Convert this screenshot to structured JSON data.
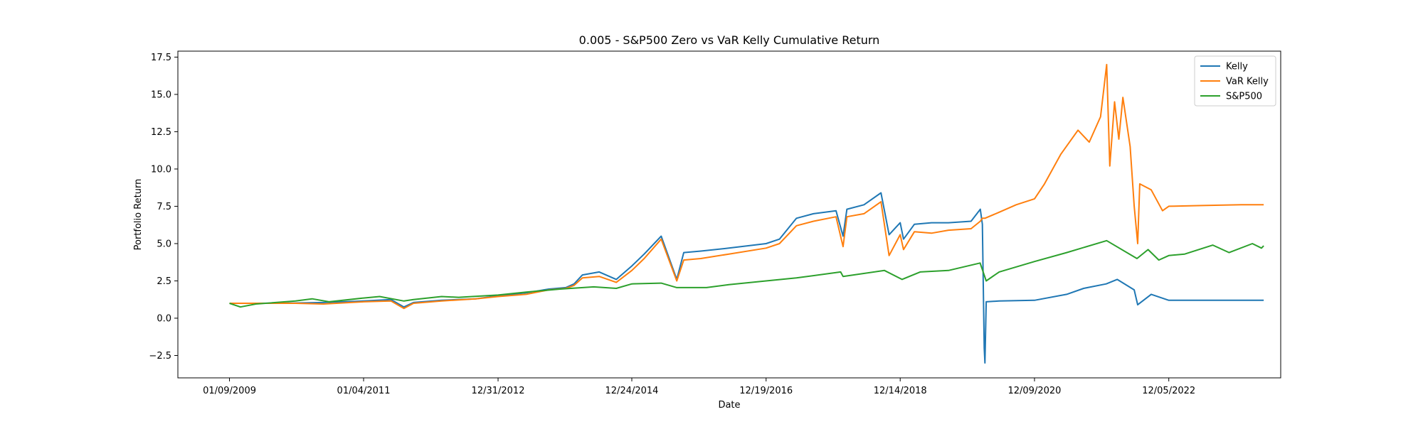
{
  "chart_data": {
    "type": "line",
    "title": "0.005 - S&P500 Zero vs VaR Kelly Cumulative Return",
    "xlabel": "Date",
    "ylabel": "Portfolio Return",
    "x_type": "date",
    "xlim": [
      "2008-04-05",
      "2024-08-01"
    ],
    "ylim": [
      -4.0,
      17.9
    ],
    "x_ticks": [
      "2009-01-09",
      "2011-01-04",
      "2012-12-31",
      "2014-12-24",
      "2016-12-19",
      "2018-12-14",
      "2020-12-09",
      "2022-12-05"
    ],
    "x_tick_labels": [
      "01/09/2009",
      "01/04/2011",
      "12/31/2012",
      "12/24/2014",
      "12/19/2016",
      "12/14/2018",
      "12/09/2020",
      "12/05/2022"
    ],
    "y_ticks": [
      -2.5,
      0.0,
      2.5,
      5.0,
      7.5,
      10.0,
      12.5,
      15.0,
      17.5
    ],
    "y_tick_labels": [
      "−2.5",
      "0.0",
      "2.5",
      "5.0",
      "7.5",
      "10.0",
      "12.5",
      "15.0",
      "17.5"
    ],
    "grid": false,
    "legend_position": "top-right",
    "series": [
      {
        "name": "Kelly",
        "color": "#1f77b4",
        "points": [
          [
            "2009-01-09",
            1.0
          ],
          [
            "2009-06-01",
            1.0
          ],
          [
            "2010-01-01",
            1.02
          ],
          [
            "2010-06-01",
            1.05
          ],
          [
            "2011-01-04",
            1.15
          ],
          [
            "2011-06-01",
            1.25
          ],
          [
            "2011-08-10",
            0.75
          ],
          [
            "2011-10-01",
            1.05
          ],
          [
            "2012-03-01",
            1.2
          ],
          [
            "2012-09-01",
            1.3
          ],
          [
            "2012-12-31",
            1.5
          ],
          [
            "2013-06-01",
            1.7
          ],
          [
            "2013-10-01",
            1.95
          ],
          [
            "2014-01-01",
            2.05
          ],
          [
            "2014-02-15",
            2.3
          ],
          [
            "2014-04-01",
            2.9
          ],
          [
            "2014-07-01",
            3.1
          ],
          [
            "2014-10-01",
            2.6
          ],
          [
            "2014-12-24",
            3.5
          ],
          [
            "2015-03-01",
            4.3
          ],
          [
            "2015-06-01",
            5.5
          ],
          [
            "2015-08-24",
            2.6
          ],
          [
            "2015-10-01",
            4.4
          ],
          [
            "2016-01-01",
            4.5
          ],
          [
            "2016-06-01",
            4.7
          ],
          [
            "2016-12-19",
            5.0
          ],
          [
            "2017-03-01",
            5.3
          ],
          [
            "2017-06-01",
            6.7
          ],
          [
            "2017-09-01",
            7.0
          ],
          [
            "2018-01-01",
            7.2
          ],
          [
            "2018-02-08",
            5.5
          ],
          [
            "2018-03-01",
            7.3
          ],
          [
            "2018-06-01",
            7.6
          ],
          [
            "2018-09-01",
            8.4
          ],
          [
            "2018-10-15",
            5.6
          ],
          [
            "2018-12-14",
            6.4
          ],
          [
            "2019-01-01",
            5.3
          ],
          [
            "2019-03-01",
            6.3
          ],
          [
            "2019-06-01",
            6.4
          ],
          [
            "2019-09-01",
            6.4
          ],
          [
            "2020-01-01",
            6.5
          ],
          [
            "2020-02-20",
            7.3
          ],
          [
            "2020-03-02",
            6.3
          ],
          [
            "2020-03-12",
            -2.0
          ],
          [
            "2020-03-16",
            -3.0
          ],
          [
            "2020-03-23",
            1.1
          ],
          [
            "2020-06-01",
            1.15
          ],
          [
            "2020-12-09",
            1.2
          ],
          [
            "2021-06-01",
            1.6
          ],
          [
            "2021-09-01",
            2.0
          ],
          [
            "2022-01-01",
            2.3
          ],
          [
            "2022-03-01",
            2.6
          ],
          [
            "2022-06-01",
            1.9
          ],
          [
            "2022-06-20",
            0.9
          ],
          [
            "2022-09-01",
            1.6
          ],
          [
            "2022-12-05",
            1.2
          ],
          [
            "2023-06-01",
            1.2
          ],
          [
            "2024-01-01",
            1.2
          ],
          [
            "2024-05-01",
            1.2
          ]
        ]
      },
      {
        "name": "VaR Kelly",
        "color": "#ff7f0e",
        "points": [
          [
            "2009-01-09",
            1.0
          ],
          [
            "2009-06-01",
            1.0
          ],
          [
            "2010-01-01",
            1.0
          ],
          [
            "2010-06-01",
            0.95
          ],
          [
            "2011-01-04",
            1.1
          ],
          [
            "2011-06-01",
            1.15
          ],
          [
            "2011-08-10",
            0.65
          ],
          [
            "2011-10-01",
            1.0
          ],
          [
            "2012-03-01",
            1.15
          ],
          [
            "2012-09-01",
            1.3
          ],
          [
            "2012-12-31",
            1.45
          ],
          [
            "2013-06-01",
            1.6
          ],
          [
            "2013-10-01",
            1.9
          ],
          [
            "2014-01-01",
            2.0
          ],
          [
            "2014-02-15",
            2.2
          ],
          [
            "2014-04-01",
            2.7
          ],
          [
            "2014-07-01",
            2.8
          ],
          [
            "2014-10-01",
            2.4
          ],
          [
            "2014-12-24",
            3.2
          ],
          [
            "2015-03-01",
            4.0
          ],
          [
            "2015-06-01",
            5.3
          ],
          [
            "2015-08-24",
            2.5
          ],
          [
            "2015-10-01",
            3.9
          ],
          [
            "2016-01-01",
            4.0
          ],
          [
            "2016-06-01",
            4.3
          ],
          [
            "2016-12-19",
            4.7
          ],
          [
            "2017-03-01",
            5.0
          ],
          [
            "2017-06-01",
            6.2
          ],
          [
            "2017-09-01",
            6.5
          ],
          [
            "2018-01-01",
            6.8
          ],
          [
            "2018-02-08",
            4.8
          ],
          [
            "2018-03-01",
            6.8
          ],
          [
            "2018-06-01",
            7.0
          ],
          [
            "2018-09-01",
            7.8
          ],
          [
            "2018-10-15",
            4.2
          ],
          [
            "2018-12-14",
            5.6
          ],
          [
            "2019-01-01",
            4.6
          ],
          [
            "2019-03-01",
            5.8
          ],
          [
            "2019-06-01",
            5.7
          ],
          [
            "2019-09-01",
            5.9
          ],
          [
            "2020-01-01",
            6.0
          ],
          [
            "2020-02-20",
            6.5
          ],
          [
            "2020-03-02",
            6.7
          ],
          [
            "2020-03-16",
            6.7
          ],
          [
            "2020-06-01",
            7.1
          ],
          [
            "2020-09-01",
            7.6
          ],
          [
            "2020-12-09",
            8.0
          ],
          [
            "2021-02-01",
            9.0
          ],
          [
            "2021-05-01",
            11.0
          ],
          [
            "2021-08-01",
            12.6
          ],
          [
            "2021-10-01",
            11.8
          ],
          [
            "2021-12-01",
            13.5
          ],
          [
            "2022-01-03",
            17.0
          ],
          [
            "2022-01-20",
            10.2
          ],
          [
            "2022-02-15",
            14.5
          ],
          [
            "2022-03-10",
            12.0
          ],
          [
            "2022-04-01",
            14.8
          ],
          [
            "2022-05-10",
            11.5
          ],
          [
            "2022-06-01",
            7.5
          ],
          [
            "2022-06-20",
            5.0
          ],
          [
            "2022-07-01",
            9.0
          ],
          [
            "2022-09-01",
            8.6
          ],
          [
            "2022-11-01",
            7.2
          ],
          [
            "2022-12-05",
            7.5
          ],
          [
            "2023-06-01",
            7.55
          ],
          [
            "2024-01-01",
            7.6
          ],
          [
            "2024-05-01",
            7.6
          ]
        ]
      },
      {
        "name": "S&P500",
        "color": "#2ca02c",
        "points": [
          [
            "2009-01-09",
            1.0
          ],
          [
            "2009-03-09",
            0.75
          ],
          [
            "2009-06-01",
            0.95
          ],
          [
            "2010-01-01",
            1.15
          ],
          [
            "2010-04-01",
            1.3
          ],
          [
            "2010-07-01",
            1.1
          ],
          [
            "2011-01-04",
            1.35
          ],
          [
            "2011-04-01",
            1.45
          ],
          [
            "2011-08-10",
            1.15
          ],
          [
            "2011-10-01",
            1.25
          ],
          [
            "2012-03-01",
            1.45
          ],
          [
            "2012-06-01",
            1.4
          ],
          [
            "2012-12-31",
            1.55
          ],
          [
            "2013-06-01",
            1.75
          ],
          [
            "2013-12-01",
            1.95
          ],
          [
            "2014-06-01",
            2.1
          ],
          [
            "2014-10-01",
            2.0
          ],
          [
            "2014-12-24",
            2.3
          ],
          [
            "2015-06-01",
            2.35
          ],
          [
            "2015-08-24",
            2.05
          ],
          [
            "2016-02-01",
            2.05
          ],
          [
            "2016-06-01",
            2.25
          ],
          [
            "2016-12-19",
            2.5
          ],
          [
            "2017-06-01",
            2.7
          ],
          [
            "2018-01-26",
            3.1
          ],
          [
            "2018-02-08",
            2.8
          ],
          [
            "2018-09-20",
            3.2
          ],
          [
            "2018-12-24",
            2.6
          ],
          [
            "2019-04-01",
            3.1
          ],
          [
            "2019-09-01",
            3.2
          ],
          [
            "2020-02-19",
            3.7
          ],
          [
            "2020-03-23",
            2.5
          ],
          [
            "2020-06-01",
            3.1
          ],
          [
            "2020-12-09",
            3.8
          ],
          [
            "2021-06-01",
            4.4
          ],
          [
            "2022-01-03",
            5.2
          ],
          [
            "2022-06-16",
            4.0
          ],
          [
            "2022-08-15",
            4.6
          ],
          [
            "2022-10-12",
            3.9
          ],
          [
            "2022-12-05",
            4.2
          ],
          [
            "2023-03-01",
            4.3
          ],
          [
            "2023-07-31",
            4.9
          ],
          [
            "2023-10-27",
            4.4
          ],
          [
            "2024-03-01",
            5.0
          ],
          [
            "2024-04-19",
            4.7
          ],
          [
            "2024-05-01",
            4.85
          ]
        ]
      }
    ]
  }
}
